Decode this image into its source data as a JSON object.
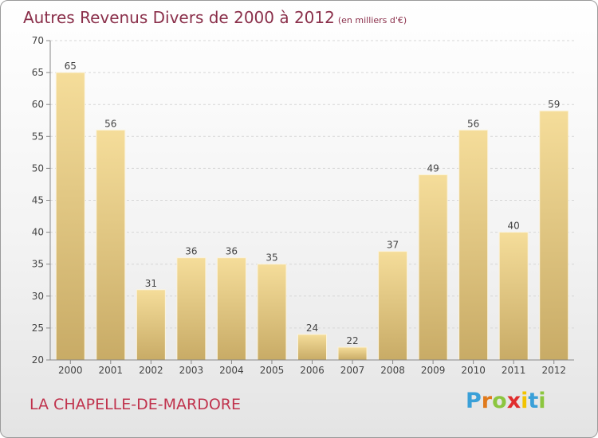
{
  "header": {
    "title": "Autres Revenus Divers de 2000 à 2012",
    "unit": "(en milliers d'€)"
  },
  "footer": {
    "place": "LA CHAPELLE-DE-MARDORE",
    "brand": "Proxiti",
    "brand_colors": [
      "#3aa0d8",
      "#e07a1c",
      "#8cc63f",
      "#e02d2d",
      "#f2c300",
      "#3aa0d8",
      "#8cc63f"
    ]
  },
  "chart_data": {
    "type": "bar",
    "categories": [
      "2000",
      "2001",
      "2002",
      "2003",
      "2004",
      "2005",
      "2006",
      "2007",
      "2008",
      "2009",
      "2010",
      "2011",
      "2012"
    ],
    "values": [
      65,
      56,
      31,
      36,
      36,
      35,
      24,
      22,
      37,
      49,
      56,
      40,
      59
    ],
    "title": "Autres Revenus Divers de 2000 à 2012",
    "ylim": [
      20,
      70
    ],
    "yticks": [
      20,
      25,
      30,
      35,
      40,
      45,
      50,
      55,
      60,
      65,
      70
    ],
    "grid": true,
    "bar_color": "#e6c98a"
  }
}
